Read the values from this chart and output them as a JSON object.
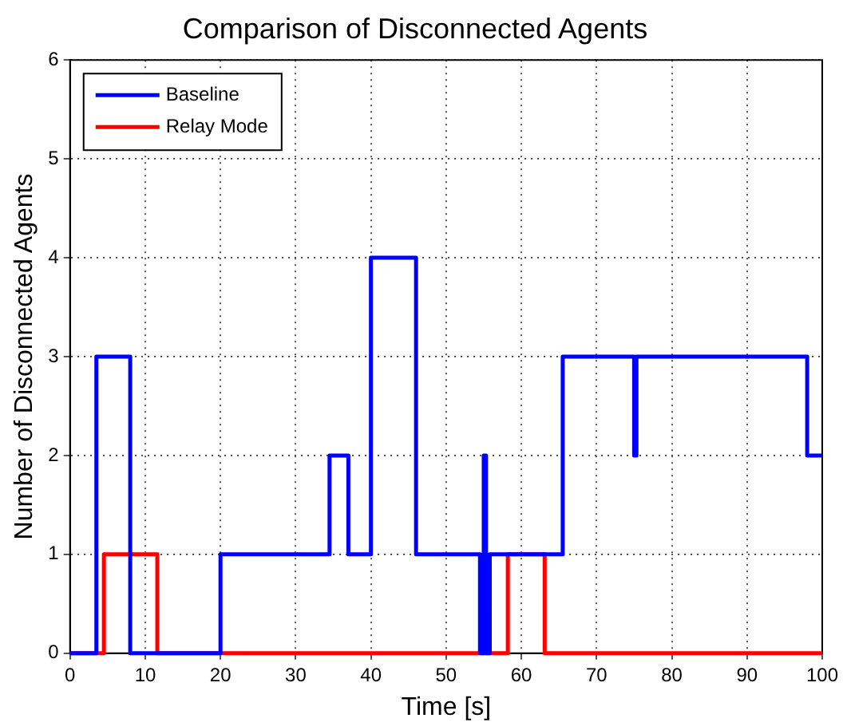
{
  "chart_data": {
    "type": "step",
    "title": "Comparison of Disconnected Agents",
    "xlabel": "Time [s]",
    "ylabel": "Number of Disconnected Agents",
    "xlim": [
      0,
      100
    ],
    "xticks": [
      0,
      10,
      20,
      30,
      40,
      50,
      60,
      70,
      80,
      90,
      100
    ],
    "ylim": [
      0,
      6
    ],
    "yticks": [
      0,
      1,
      2,
      3,
      4,
      5,
      6
    ],
    "grid": true,
    "legend": "top left",
    "line_style": "solid",
    "marker": "none",
    "series": [
      {
        "name": "Baseline",
        "color": "#0000ff",
        "x": [
          0,
          3.5,
          8,
          20,
          34.5,
          37,
          40,
          46,
          54.5,
          55,
          55.3,
          55.8,
          65.5,
          75,
          75.3,
          98,
          100
        ],
        "values": [
          0,
          3,
          0,
          1,
          2,
          1,
          4,
          1,
          0,
          2,
          0,
          1,
          3,
          2,
          3,
          2,
          2
        ]
      },
      {
        "name": "Relay Mode",
        "color": "#ff0000",
        "x": [
          0,
          4.5,
          11.6,
          58.2,
          63.1,
          100
        ],
        "values": [
          0,
          1,
          0,
          1,
          0,
          0
        ]
      }
    ]
  }
}
